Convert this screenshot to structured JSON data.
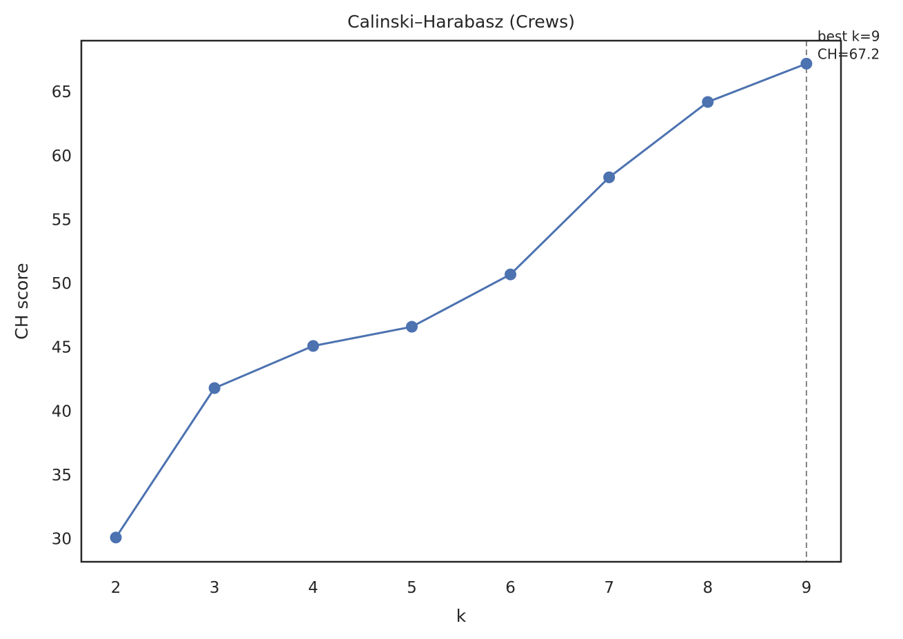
{
  "chart_data": {
    "type": "line",
    "title": "Calinski–Harabasz (Crews)",
    "xlabel": "k",
    "ylabel": "CH score",
    "x": [
      2,
      3,
      4,
      5,
      6,
      7,
      8,
      9
    ],
    "series": [
      {
        "values": [
          30.1,
          41.8,
          45.1,
          46.6,
          50.7,
          58.3,
          64.2,
          67.2
        ],
        "color": "#4c72b0",
        "marker": "circle"
      }
    ],
    "xlim": [
      1.65,
      9.35
    ],
    "ylim": [
      28.2,
      69.0
    ],
    "xticks": [
      2,
      3,
      4,
      5,
      6,
      7,
      8,
      9
    ],
    "yticks": [
      30,
      35,
      40,
      45,
      50,
      55,
      60,
      65
    ],
    "grid": false,
    "legend": "none",
    "reference_line": {
      "axis": "x",
      "value": 9,
      "style": "dashed",
      "color": "#808080"
    },
    "annotation": {
      "lines": [
        "best k=9",
        "CH=67.2"
      ],
      "x": 9,
      "y": 67.2
    }
  }
}
